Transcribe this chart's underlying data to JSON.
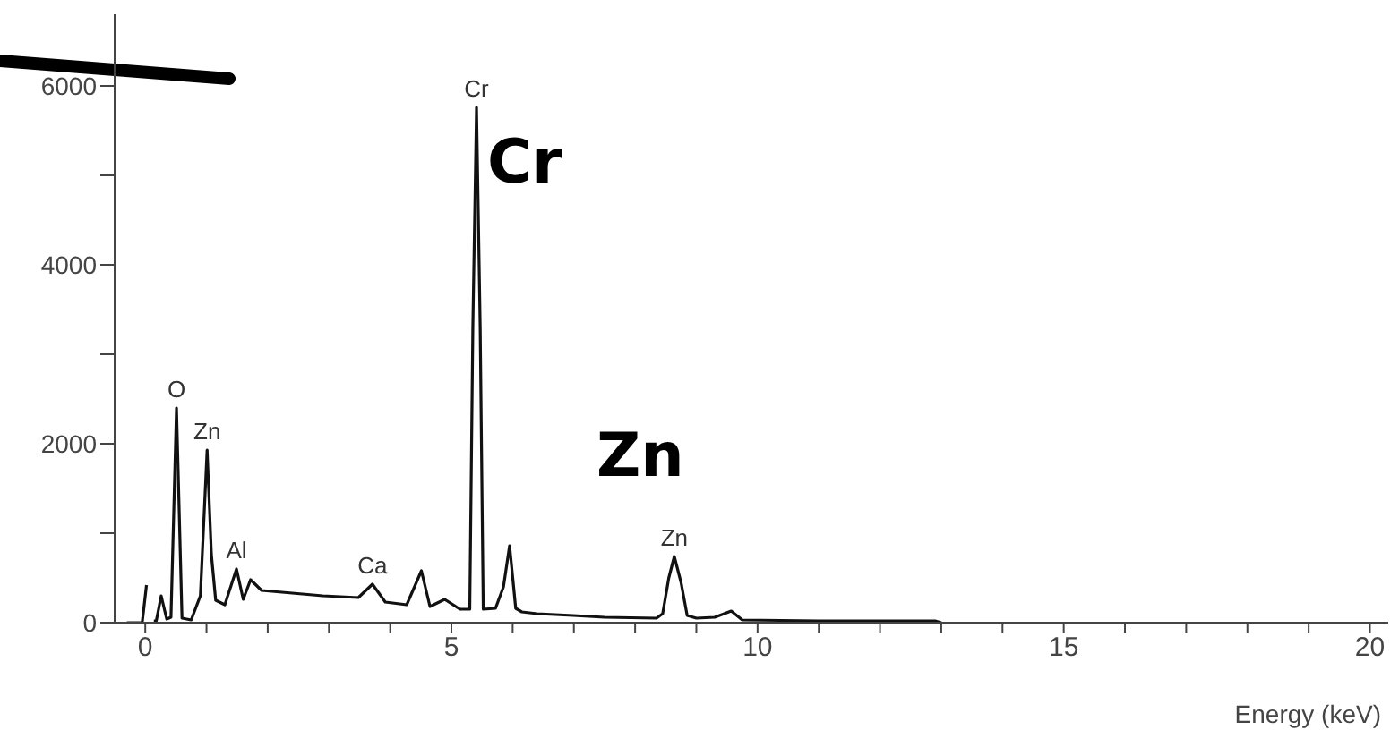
{
  "chart_data": {
    "type": "line",
    "xlabel": "Energy (keV)",
    "x": [
      -0.3,
      -0.05,
      0.02,
      0.06,
      0.1,
      0.14,
      0.18,
      0.26,
      0.35,
      0.42,
      0.51,
      0.6,
      0.75,
      0.9,
      1.01,
      1.08,
      1.15,
      1.3,
      1.49,
      1.6,
      1.72,
      1.9,
      2.4,
      2.9,
      3.48,
      3.71,
      3.92,
      4.27,
      4.51,
      4.65,
      4.89,
      5.14,
      5.3,
      5.35,
      5.41,
      5.47,
      5.52,
      5.72,
      5.85,
      5.95,
      6.05,
      6.15,
      6.4,
      6.99,
      7.5,
      8.35,
      8.45,
      8.55,
      8.64,
      8.75,
      8.85,
      9.0,
      9.3,
      9.57,
      9.75,
      11.0,
      12.9,
      13.0
    ],
    "series": [
      {
        "color": "#111111",
        "values": [
          0,
          0,
          420,
          null,
          null,
          20,
          20,
          300,
          40,
          60,
          2400,
          50,
          30,
          300,
          1930,
          760,
          250,
          200,
          600,
          260,
          480,
          360,
          330,
          300,
          280,
          430,
          230,
          200,
          580,
          180,
          260,
          150,
          150,
          3300,
          5760,
          3300,
          150,
          160,
          400,
          860,
          160,
          120,
          100,
          80,
          60,
          50,
          100,
          500,
          740,
          450,
          80,
          50,
          60,
          130,
          30,
          20,
          20,
          0
        ]
      }
    ],
    "xlim": [
      -0.5,
      20.3
    ],
    "xticks": [
      0,
      {
        "value": 1,
        "label": null
      },
      {
        "value": 2,
        "label": null
      },
      {
        "value": 3,
        "label": null
      },
      {
        "value": 4,
        "label": null
      },
      5,
      {
        "value": 6,
        "label": null
      },
      {
        "value": 7,
        "label": null
      },
      {
        "value": 8,
        "label": null
      },
      {
        "value": 9,
        "label": null
      },
      10,
      {
        "value": 11,
        "label": null
      },
      {
        "value": 12,
        "label": null
      },
      {
        "value": 13,
        "label": null
      },
      {
        "value": 14,
        "label": null
      },
      15,
      {
        "value": 16,
        "label": null
      },
      {
        "value": 17,
        "label": null
      },
      {
        "value": 18,
        "label": null
      },
      {
        "value": 19,
        "label": null
      },
      20
    ],
    "ylim": [
      0,
      6800
    ],
    "yticks": [
      0,
      {
        "value": 1000,
        "label": null
      },
      2000,
      {
        "value": 3000,
        "label": null
      },
      4000,
      {
        "value": 5000,
        "label": null
      },
      6000
    ],
    "annotations": [
      {
        "text": "O",
        "x": 0.51,
        "y": 2400
      },
      {
        "text": "Zn",
        "x": 1.01,
        "y": 1930
      },
      {
        "text": "Al",
        "x": 1.49,
        "y": 600
      },
      {
        "text": "Ca",
        "x": 3.71,
        "y": 430
      },
      {
        "text": "Cr",
        "x": 5.41,
        "y": 5760
      },
      {
        "text": "Zn",
        "x": 8.64,
        "y": 740
      },
      "Cr",
      "Zn"
    ],
    "marker": "none",
    "line_style": "solid",
    "grid": false,
    "legend": false
  }
}
